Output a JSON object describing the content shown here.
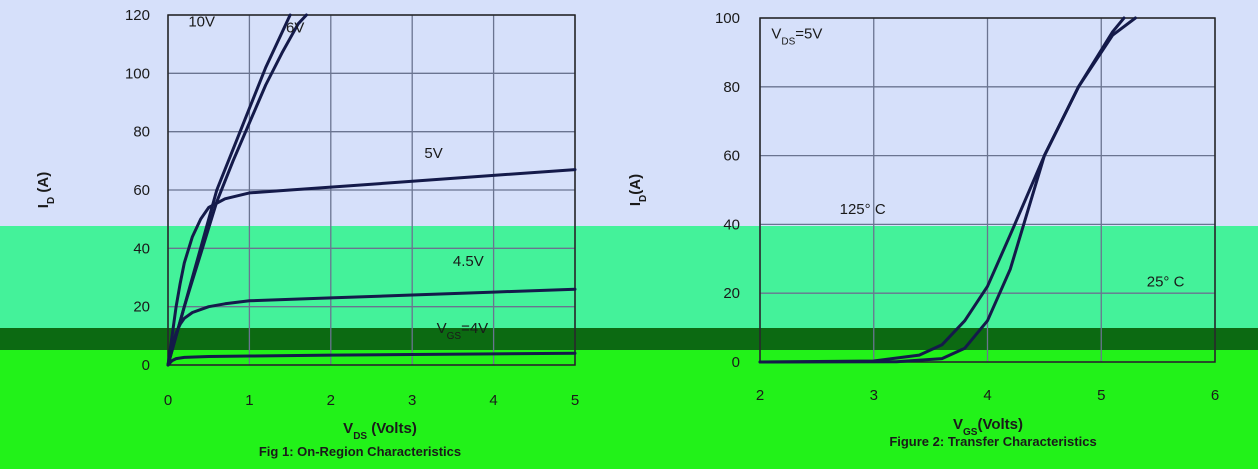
{
  "chart_data": [
    {
      "type": "line",
      "title": "Fig 1: On-Region Characteristics",
      "xlabel": "V",
      "xlabel_sub": "DS",
      "xlabel_unit": " (Volts)",
      "ylabel": "I",
      "ylabel_sub": "D",
      "ylabel_unit": " (A)",
      "xlim": [
        0,
        5
      ],
      "ylim": [
        0,
        120
      ],
      "xticks": [
        "0",
        "1",
        "2",
        "3",
        "4",
        "5"
      ],
      "yticks": [
        "0",
        "20",
        "40",
        "60",
        "80",
        "100",
        "120"
      ],
      "grid": true,
      "series": [
        {
          "name": "10V",
          "x": [
            0,
            0.1,
            0.2,
            0.3,
            0.4,
            0.5,
            0.6,
            0.8,
            1.0,
            1.2,
            1.4,
            1.5
          ],
          "y": [
            0,
            10,
            20,
            30,
            40,
            50,
            60,
            74,
            88,
            102,
            114,
            120
          ]
        },
        {
          "name": "6V",
          "x": [
            0,
            0.1,
            0.2,
            0.3,
            0.4,
            0.5,
            0.6,
            0.8,
            1.0,
            1.2,
            1.4,
            1.6,
            1.7
          ],
          "y": [
            0,
            10,
            20,
            29,
            38,
            47,
            56,
            70,
            83,
            96,
            107,
            117,
            120
          ]
        },
        {
          "name": "5V",
          "x": [
            0,
            0.05,
            0.1,
            0.15,
            0.2,
            0.3,
            0.4,
            0.5,
            0.7,
            1.0,
            1.5,
            2.0,
            3.0,
            4.0,
            5.0
          ],
          "y": [
            0,
            10,
            20,
            28,
            35,
            44,
            50,
            54,
            57,
            59,
            60,
            61,
            63,
            65,
            67
          ]
        },
        {
          "name": "4.5V",
          "x": [
            0,
            0.05,
            0.1,
            0.15,
            0.2,
            0.3,
            0.5,
            0.7,
            1.0,
            2.0,
            3.0,
            4.0,
            5.0
          ],
          "y": [
            0,
            6,
            11,
            14,
            16,
            18,
            20,
            21,
            22,
            23,
            24,
            25,
            26
          ]
        },
        {
          "name": "",
          "x": [
            0,
            0.05,
            0.1,
            0.2,
            0.5,
            1.0,
            2.0,
            3.0,
            4.0,
            5.0
          ],
          "y": [
            0,
            1.5,
            2.2,
            2.6,
            2.9,
            3.1,
            3.4,
            3.6,
            3.8,
            4.0
          ]
        }
      ],
      "annotations": [
        {
          "text": "10V",
          "x": 0.25,
          "y": 116
        },
        {
          "text": "6V",
          "x": 1.45,
          "y": 114
        },
        {
          "text": "5V",
          "x": 3.15,
          "y": 71
        },
        {
          "text": "4.5V",
          "x": 3.5,
          "y": 34
        },
        {
          "text": "V",
          "sub": "GS",
          "text2": "=4V",
          "x": 3.3,
          "y": 11
        }
      ]
    },
    {
      "type": "line",
      "title": "Figure 2: Transfer Characteristics",
      "xlabel": "V",
      "xlabel_sub": "GS",
      "xlabel_unit": "(Volts)",
      "ylabel": "I",
      "ylabel_sub": "D",
      "ylabel_unit": "(A)",
      "xlim": [
        2,
        6
      ],
      "ylim": [
        0,
        100
      ],
      "xticks": [
        "2",
        "3",
        "4",
        "5",
        "6"
      ],
      "yticks": [
        "0",
        "20",
        "40",
        "60",
        "80",
        "100"
      ],
      "grid": true,
      "series": [
        {
          "name": "125° C",
          "x": [
            2,
            3.0,
            3.4,
            3.6,
            3.8,
            4.0,
            4.2,
            4.5,
            4.8,
            5.1,
            5.2
          ],
          "y": [
            0,
            0.3,
            2,
            5,
            12,
            22,
            37,
            60,
            80,
            96,
            100
          ]
        },
        {
          "name": "25° C",
          "x": [
            2,
            3.2,
            3.6,
            3.8,
            4.0,
            4.2,
            4.5,
            4.8,
            5.1,
            5.3
          ],
          "y": [
            0,
            0.1,
            1,
            4,
            12,
            27,
            60,
            80,
            95,
            100
          ]
        }
      ],
      "annotations": [
        {
          "text": "V",
          "sub": "DS",
          "text2": "=5V",
          "x": 2.1,
          "y": 94
        },
        {
          "text": "125° C",
          "x": 2.7,
          "y": 43
        },
        {
          "text": "25° C",
          "x": 5.4,
          "y": 22
        }
      ]
    }
  ]
}
